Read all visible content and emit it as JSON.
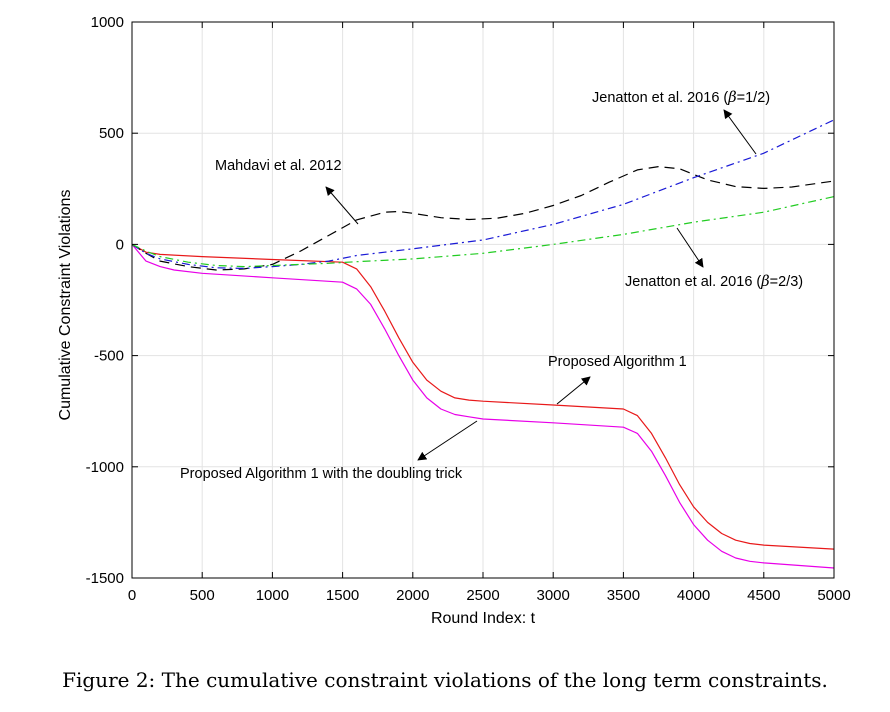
{
  "caption": "Figure 2: The cumulative constraint violations of the long term constraints.",
  "chart_data": {
    "type": "line",
    "xlabel": "Round Index: t",
    "ylabel": "Cumulative Constraint Violations",
    "xlim": [
      0,
      5000
    ],
    "ylim": [
      -1500,
      1000
    ],
    "xticks": [
      0,
      500,
      1000,
      1500,
      2000,
      2500,
      3000,
      3500,
      4000,
      4500,
      5000
    ],
    "yticks": [
      -1500,
      -1000,
      -500,
      0,
      500,
      1000
    ],
    "grid": true,
    "legend": "none",
    "series": [
      {
        "name": "Proposed Algorithm 1",
        "color": "#e8191a",
        "style": "solid",
        "x": [
          0,
          100,
          200,
          500,
          1000,
          1500,
          1600,
          1700,
          1800,
          1900,
          2000,
          2100,
          2200,
          2300,
          2400,
          2500,
          3000,
          3500,
          3600,
          3700,
          3800,
          3900,
          4000,
          4100,
          4200,
          4300,
          4400,
          4500,
          5000
        ],
        "y": [
          0,
          -35,
          -45,
          -55,
          -68,
          -80,
          -110,
          -190,
          -300,
          -420,
          -530,
          -610,
          -660,
          -690,
          -700,
          -705,
          -722,
          -740,
          -770,
          -850,
          -960,
          -1080,
          -1180,
          -1250,
          -1300,
          -1330,
          -1345,
          -1352,
          -1370
        ]
      },
      {
        "name": "Proposed Algorithm 1 with the doubling trick",
        "color": "#e800e8",
        "style": "solid",
        "x": [
          0,
          100,
          200,
          300,
          500,
          1000,
          1500,
          1600,
          1700,
          1800,
          1900,
          2000,
          2100,
          2200,
          2300,
          2400,
          2500,
          3000,
          3500,
          3600,
          3700,
          3800,
          3900,
          4000,
          4100,
          4200,
          4300,
          4400,
          4500,
          5000
        ],
        "y": [
          0,
          -75,
          -100,
          -115,
          -130,
          -150,
          -170,
          -200,
          -270,
          -380,
          -500,
          -610,
          -690,
          -740,
          -765,
          -775,
          -785,
          -802,
          -822,
          -850,
          -930,
          -1040,
          -1160,
          -1260,
          -1330,
          -1380,
          -1410,
          -1425,
          -1432,
          -1455
        ]
      },
      {
        "name": "Mahdavi et al. 2012",
        "color": "#000000",
        "style": "dashed",
        "x": [
          0,
          100,
          200,
          400,
          600,
          800,
          1000,
          1200,
          1400,
          1600,
          1800,
          1900,
          2000,
          2200,
          2400,
          2600,
          2800,
          3000,
          3200,
          3400,
          3600,
          3750,
          3900,
          4100,
          4300,
          4500,
          4700,
          5000
        ],
        "y": [
          0,
          -40,
          -75,
          -100,
          -115,
          -110,
          -90,
          -30,
          40,
          110,
          145,
          148,
          140,
          120,
          112,
          118,
          140,
          175,
          220,
          280,
          335,
          350,
          340,
          290,
          260,
          252,
          258,
          285
        ]
      },
      {
        "name": "Jenatton et al. 2016 (β=1/2)",
        "color": "#1a1ad6",
        "style": "dashdot",
        "x": [
          0,
          100,
          200,
          400,
          600,
          800,
          1000,
          1200,
          1400,
          1600,
          1800,
          2000,
          2500,
          3000,
          3500,
          4000,
          4500,
          5000
        ],
        "y": [
          0,
          -40,
          -65,
          -90,
          -105,
          -108,
          -100,
          -90,
          -75,
          -50,
          -35,
          -20,
          20,
          90,
          180,
          300,
          410,
          560
        ]
      },
      {
        "name": "Jenatton et al. 2016 (β=2/3)",
        "color": "#22cc22",
        "style": "dashdot",
        "x": [
          0,
          100,
          200,
          400,
          600,
          800,
          1000,
          1200,
          1400,
          1600,
          2000,
          2500,
          3000,
          3500,
          4000,
          4500,
          5000
        ],
        "y": [
          0,
          -30,
          -55,
          -80,
          -95,
          -100,
          -95,
          -90,
          -85,
          -78,
          -65,
          -40,
          0,
          45,
          100,
          145,
          215
        ]
      }
    ],
    "annotations": [
      {
        "text": "Jenatton et al. 2016 (",
        "symbol": "β",
        "suffix": "=1/2)",
        "series": "Jenatton et al. 2016 (β=1/2)"
      },
      {
        "text": "Mahdavi et al. 2012",
        "series": "Mahdavi et al. 2012"
      },
      {
        "text": "Jenatton et al. 2016 (",
        "symbol": "β",
        "suffix": "=2/3)",
        "series": "Jenatton et al. 2016 (β=2/3)"
      },
      {
        "text": "Proposed Algorithm 1",
        "series": "Proposed Algorithm 1"
      },
      {
        "text": "Proposed Algorithm 1 with the doubling trick",
        "series": "Proposed Algorithm 1 with the doubling trick"
      }
    ]
  }
}
